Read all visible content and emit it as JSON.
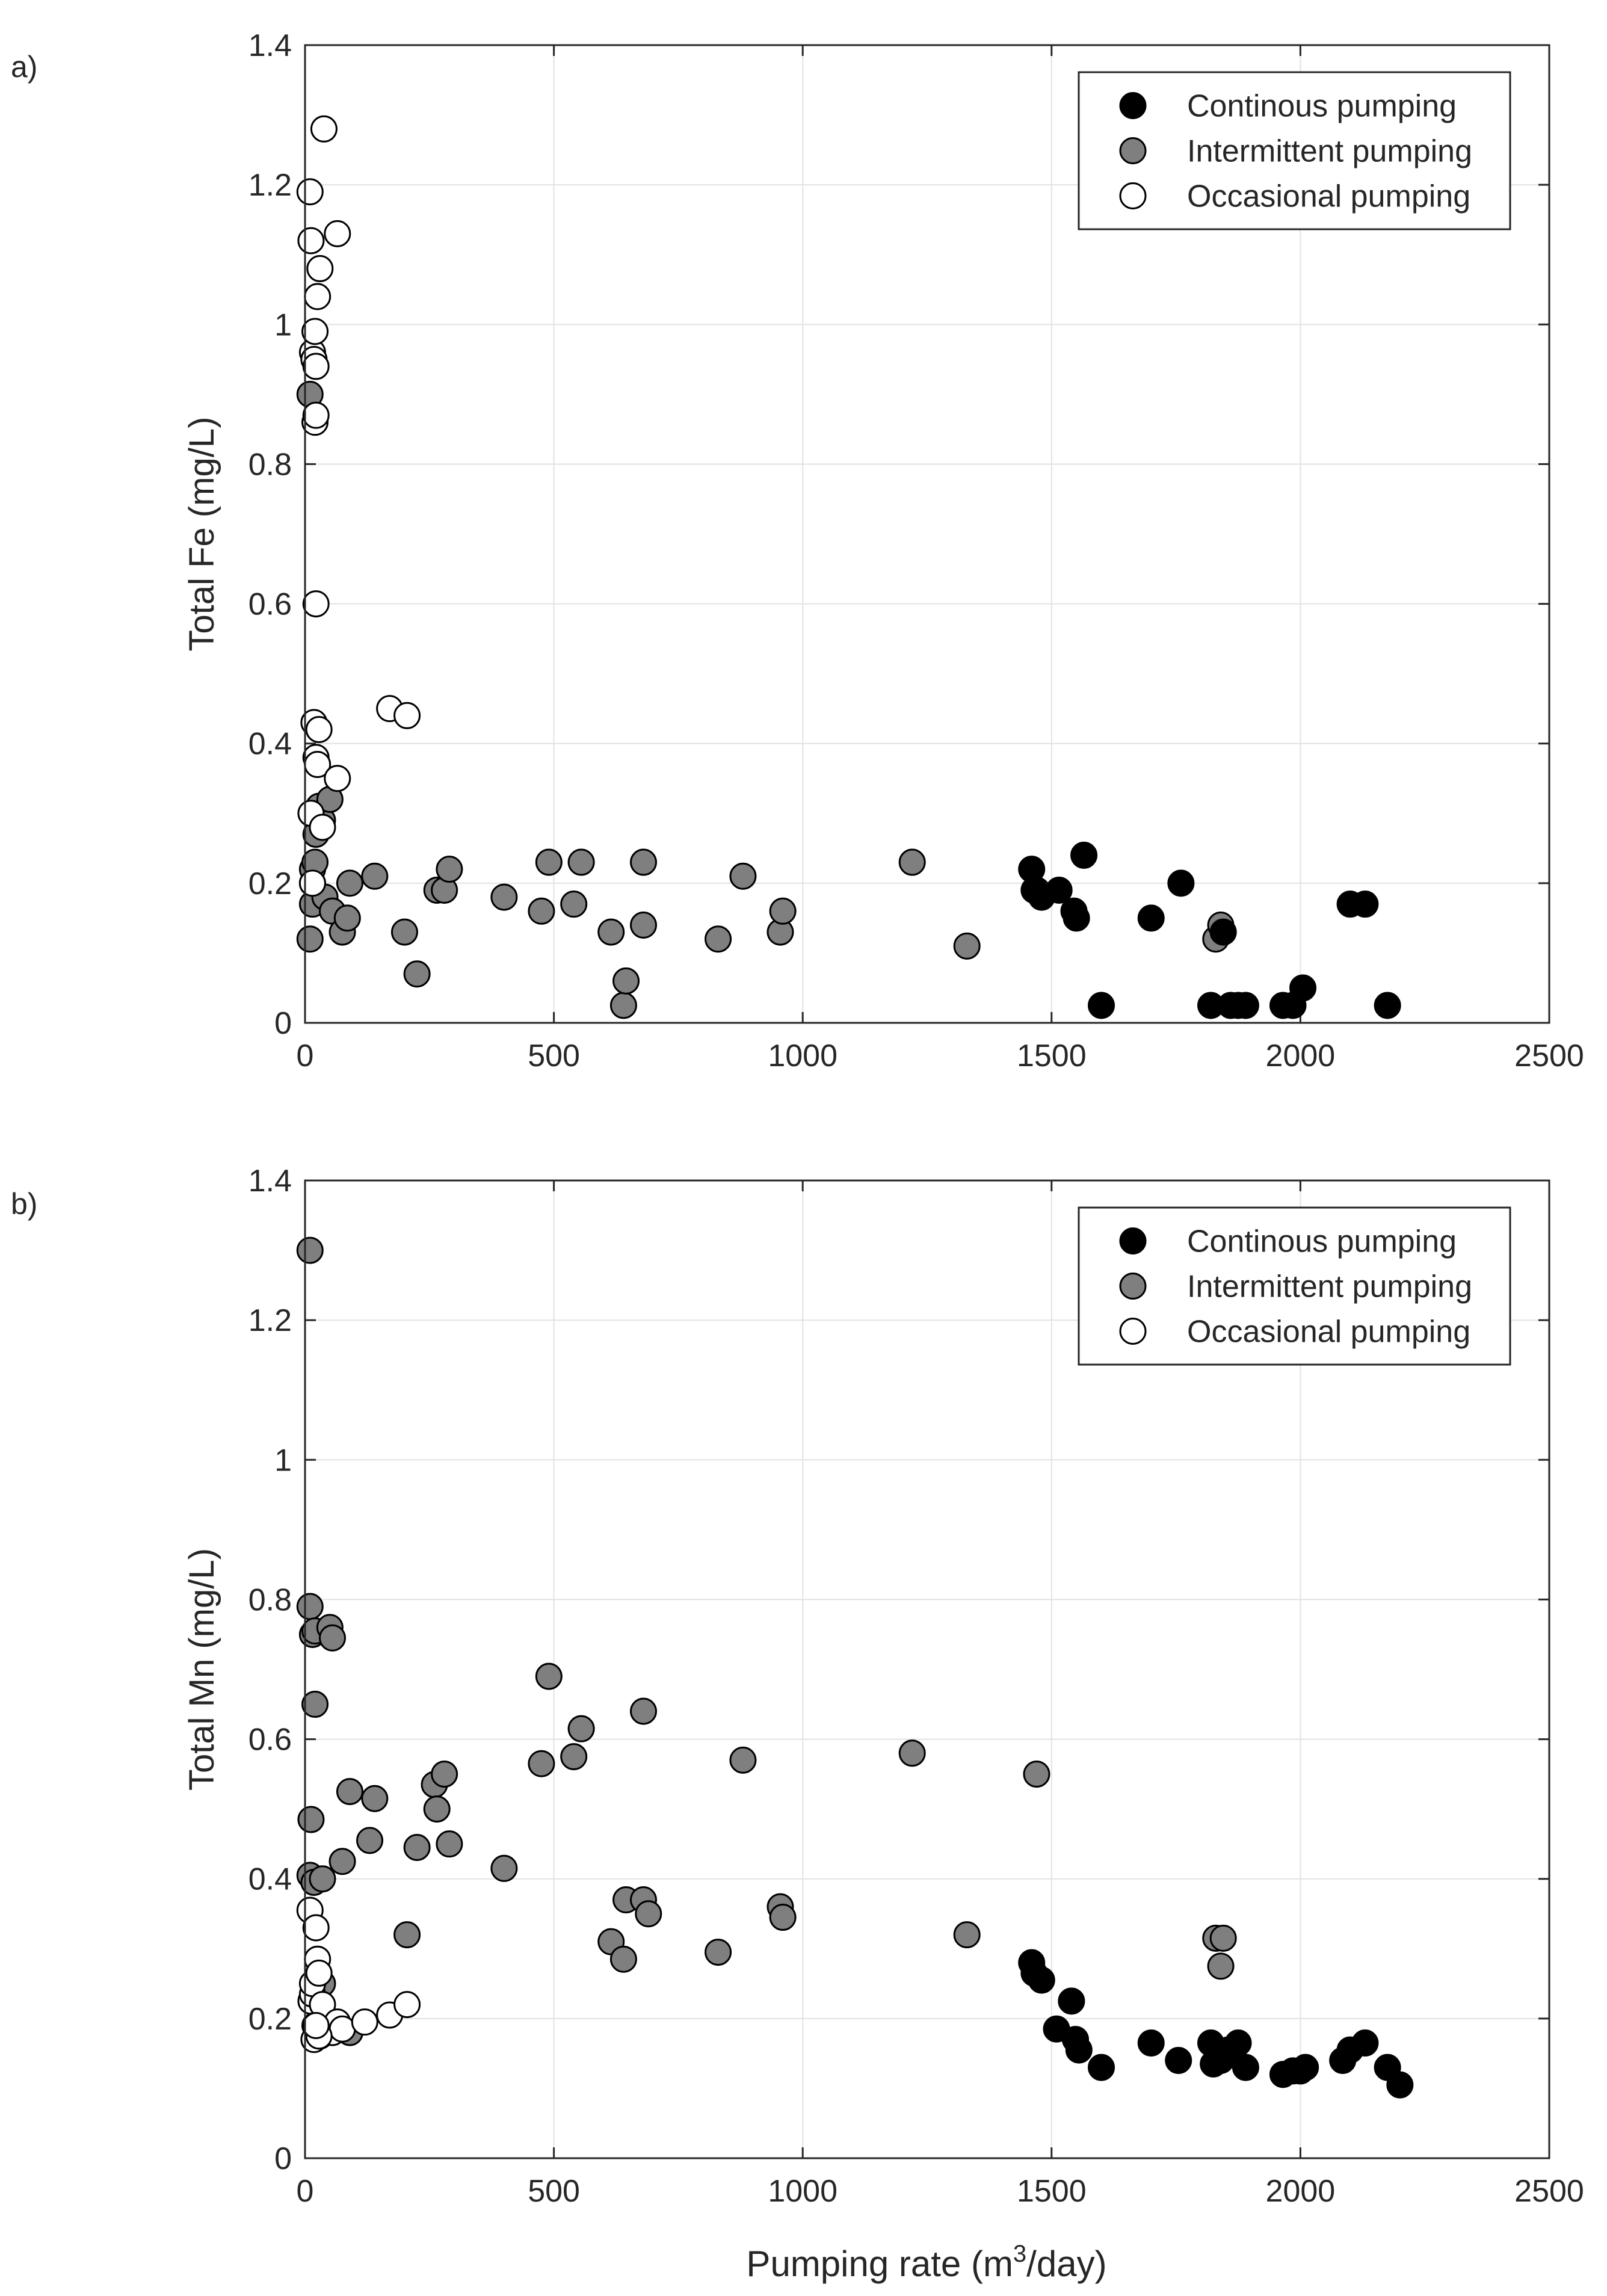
{
  "chart_data": [
    {
      "type": "scatter",
      "panel_label": "a)",
      "xlabel": "",
      "ylabel": "Total Fe (mg/L)",
      "xlim": [
        0,
        2500
      ],
      "ylim": [
        0,
        1.4
      ],
      "xticks": [
        0,
        500,
        1000,
        1500,
        2000,
        2500
      ],
      "yticks": [
        0,
        0.2,
        0.4,
        0.6,
        0.8,
        1,
        1.2,
        1.4
      ],
      "ytick_labels": [
        "0",
        "0.2",
        "0.4",
        "0.6",
        "0.8",
        "1",
        "1.2",
        "1.4"
      ],
      "grid": true,
      "legend_position": "top-right",
      "series": [
        {
          "name": "Continous pumping",
          "color": "#000000",
          "points": [
            [
              1460,
              0.22
            ],
            [
              1465,
              0.19
            ],
            [
              1480,
              0.18
            ],
            [
              1515,
              0.19
            ],
            [
              1545,
              0.16
            ],
            [
              1550,
              0.15
            ],
            [
              1565,
              0.24
            ],
            [
              1600,
              0.025
            ],
            [
              1700,
              0.15
            ],
            [
              1760,
              0.2
            ],
            [
              1820,
              0.025
            ],
            [
              1845,
              0.13
            ],
            [
              1860,
              0.025
            ],
            [
              1875,
              0.025
            ],
            [
              1890,
              0.025
            ],
            [
              1965,
              0.025
            ],
            [
              1985,
              0.025
            ],
            [
              2005,
              0.05
            ],
            [
              2100,
              0.17
            ],
            [
              2130,
              0.17
            ],
            [
              2175,
              0.025
            ]
          ]
        },
        {
          "name": "Intermittent pumping",
          "color": "#7f7f7f",
          "points": [
            [
              10,
              0.9
            ],
            [
              10,
              0.12
            ],
            [
              15,
              0.2
            ],
            [
              15,
              0.22
            ],
            [
              15,
              0.17
            ],
            [
              20,
              0.23
            ],
            [
              22,
              0.27
            ],
            [
              28,
              0.31
            ],
            [
              35,
              0.29
            ],
            [
              40,
              0.18
            ],
            [
              50,
              0.32
            ],
            [
              55,
              0.16
            ],
            [
              75,
              0.13
            ],
            [
              85,
              0.15
            ],
            [
              90,
              0.2
            ],
            [
              140,
              0.21
            ],
            [
              200,
              0.13
            ],
            [
              225,
              0.07
            ],
            [
              265,
              0.19
            ],
            [
              280,
              0.19
            ],
            [
              290,
              0.22
            ],
            [
              400,
              0.18
            ],
            [
              475,
              0.16
            ],
            [
              490,
              0.23
            ],
            [
              540,
              0.17
            ],
            [
              555,
              0.23
            ],
            [
              615,
              0.13
            ],
            [
              640,
              0.025
            ],
            [
              645,
              0.06
            ],
            [
              680,
              0.14
            ],
            [
              680,
              0.23
            ],
            [
              830,
              0.12
            ],
            [
              880,
              0.21
            ],
            [
              955,
              0.13
            ],
            [
              960,
              0.16
            ],
            [
              1220,
              0.23
            ],
            [
              1330,
              0.11
            ],
            [
              1470,
              0.19
            ],
            [
              1830,
              0.12
            ],
            [
              1840,
              0.14
            ]
          ]
        },
        {
          "name": "Occasional pumping",
          "color": "#ffffff",
          "points": [
            [
              10,
              1.19
            ],
            [
              12,
              1.12
            ],
            [
              15,
              0.96
            ],
            [
              18,
              0.95
            ],
            [
              20,
              0.99
            ],
            [
              22,
              0.94
            ],
            [
              20,
              0.86
            ],
            [
              22,
              0.87
            ],
            [
              25,
              1.04
            ],
            [
              30,
              1.08
            ],
            [
              38,
              1.28
            ],
            [
              65,
              1.13
            ],
            [
              22,
              0.6
            ],
            [
              18,
              0.43
            ],
            [
              28,
              0.42
            ],
            [
              22,
              0.38
            ],
            [
              25,
              0.37
            ],
            [
              65,
              0.35
            ],
            [
              12,
              0.3
            ],
            [
              35,
              0.28
            ],
            [
              15,
              0.2
            ],
            [
              170,
              0.45
            ],
            [
              205,
              0.44
            ]
          ]
        }
      ]
    },
    {
      "type": "scatter",
      "panel_label": "b)",
      "xlabel": "Pumping rate (m³/day)",
      "xlabel_main": "Pumping rate (m",
      "xlabel_sup": "3",
      "xlabel_tail": "/day)",
      "ylabel": "Total Mn (mg/L)",
      "xlim": [
        0,
        2500
      ],
      "ylim": [
        0,
        1.4
      ],
      "xticks": [
        0,
        500,
        1000,
        1500,
        2000,
        2500
      ],
      "yticks": [
        0,
        0.2,
        0.4,
        0.6,
        0.8,
        1,
        1.2,
        1.4
      ],
      "ytick_labels": [
        "0",
        "0.2",
        "0.4",
        "0.6",
        "0.8",
        "1",
        "1.2",
        "1.4"
      ],
      "grid": true,
      "legend_position": "top-right",
      "series": [
        {
          "name": "Continous pumping",
          "color": "#000000",
          "points": [
            [
              1460,
              0.28
            ],
            [
              1465,
              0.265
            ],
            [
              1480,
              0.255
            ],
            [
              1510,
              0.185
            ],
            [
              1540,
              0.225
            ],
            [
              1548,
              0.17
            ],
            [
              1555,
              0.155
            ],
            [
              1600,
              0.13
            ],
            [
              1700,
              0.165
            ],
            [
              1755,
              0.14
            ],
            [
              1820,
              0.165
            ],
            [
              1825,
              0.135
            ],
            [
              1840,
              0.14
            ],
            [
              1855,
              0.155
            ],
            [
              1875,
              0.165
            ],
            [
              1890,
              0.13
            ],
            [
              1965,
              0.12
            ],
            [
              1985,
              0.125
            ],
            [
              2000,
              0.125
            ],
            [
              2010,
              0.13
            ],
            [
              2085,
              0.14
            ],
            [
              2100,
              0.155
            ],
            [
              2130,
              0.165
            ],
            [
              2175,
              0.13
            ],
            [
              2200,
              0.105
            ]
          ]
        },
        {
          "name": "Intermittent pumping",
          "color": "#7f7f7f",
          "points": [
            [
              10,
              1.3
            ],
            [
              10,
              0.79
            ],
            [
              15,
              0.75
            ],
            [
              20,
              0.755
            ],
            [
              20,
              0.65
            ],
            [
              50,
              0.76
            ],
            [
              55,
              0.745
            ],
            [
              12,
              0.485
            ],
            [
              10,
              0.405
            ],
            [
              18,
              0.395
            ],
            [
              35,
              0.4
            ],
            [
              35,
              0.25
            ],
            [
              75,
              0.425
            ],
            [
              90,
              0.525
            ],
            [
              90,
              0.18
            ],
            [
              130,
              0.455
            ],
            [
              140,
              0.515
            ],
            [
              205,
              0.32
            ],
            [
              225,
              0.445
            ],
            [
              260,
              0.535
            ],
            [
              265,
              0.5
            ],
            [
              280,
              0.55
            ],
            [
              290,
              0.45
            ],
            [
              400,
              0.415
            ],
            [
              475,
              0.565
            ],
            [
              490,
              0.69
            ],
            [
              540,
              0.575
            ],
            [
              555,
              0.615
            ],
            [
              615,
              0.31
            ],
            [
              640,
              0.285
            ],
            [
              645,
              0.37
            ],
            [
              680,
              0.37
            ],
            [
              680,
              0.64
            ],
            [
              690,
              0.35
            ],
            [
              830,
              0.295
            ],
            [
              880,
              0.57
            ],
            [
              955,
              0.36
            ],
            [
              960,
              0.345
            ],
            [
              1220,
              0.58
            ],
            [
              1330,
              0.32
            ],
            [
              1470,
              0.55
            ],
            [
              1830,
              0.315
            ],
            [
              1840,
              0.275
            ],
            [
              1845,
              0.315
            ]
          ]
        },
        {
          "name": "Occasional pumping",
          "color": "#ffffff",
          "points": [
            [
              10,
              0.355
            ],
            [
              12,
              0.225
            ],
            [
              15,
              0.235
            ],
            [
              15,
              0.25
            ],
            [
              18,
              0.17
            ],
            [
              20,
              0.19
            ],
            [
              22,
              0.33
            ],
            [
              25,
              0.285
            ],
            [
              28,
              0.265
            ],
            [
              30,
              0.175
            ],
            [
              35,
              0.22
            ],
            [
              40,
              0.18
            ],
            [
              55,
              0.18
            ],
            [
              65,
              0.195
            ],
            [
              75,
              0.185
            ],
            [
              120,
              0.195
            ],
            [
              170,
              0.205
            ],
            [
              205,
              0.22
            ],
            [
              28,
              0.175
            ],
            [
              22,
              0.19
            ]
          ]
        }
      ]
    }
  ]
}
